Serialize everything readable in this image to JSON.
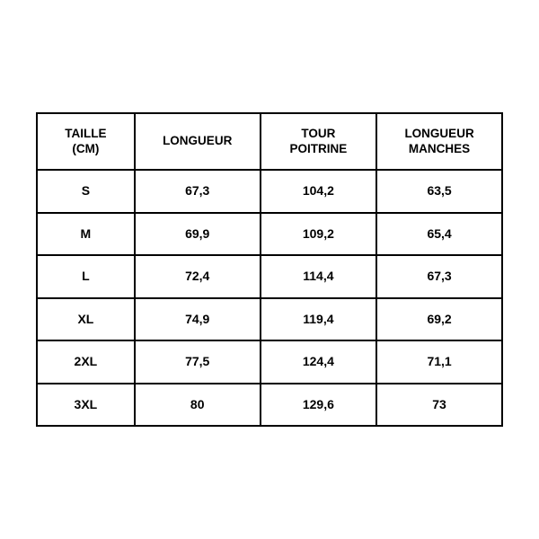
{
  "table": {
    "type": "table",
    "columns": [
      {
        "line1": "TAILLE",
        "line2": "(CM)",
        "width_pct": 21
      },
      {
        "line1": "LONGUEUR",
        "line2": "",
        "width_pct": 27
      },
      {
        "line1": "TOUR",
        "line2": "POITRINE",
        "width_pct": 25
      },
      {
        "line1": "LONGUEUR",
        "line2": "MANCHES",
        "width_pct": 27
      }
    ],
    "rows": [
      {
        "size": "S",
        "longueur": "67,3",
        "poitrine": "104,2",
        "manches": "63,5"
      },
      {
        "size": "M",
        "longueur": "69,9",
        "poitrine": "109,2",
        "manches": "65,4"
      },
      {
        "size": "L",
        "longueur": "72,4",
        "poitrine": "114,4",
        "manches": "67,3"
      },
      {
        "size": "XL",
        "longueur": "74,9",
        "poitrine": "119,4",
        "manches": "69,2"
      },
      {
        "size": "2XL",
        "longueur": "77,5",
        "poitrine": "124,4",
        "manches": "71,1"
      },
      {
        "size": "3XL",
        "longueur": "80",
        "poitrine": "129,6",
        "manches": "73"
      }
    ],
    "border_color": "#000000",
    "background_color": "#ffffff",
    "text_color": "#000000",
    "header_fontsize": 13.5,
    "cell_fontsize": 14,
    "font_weight": 700
  }
}
